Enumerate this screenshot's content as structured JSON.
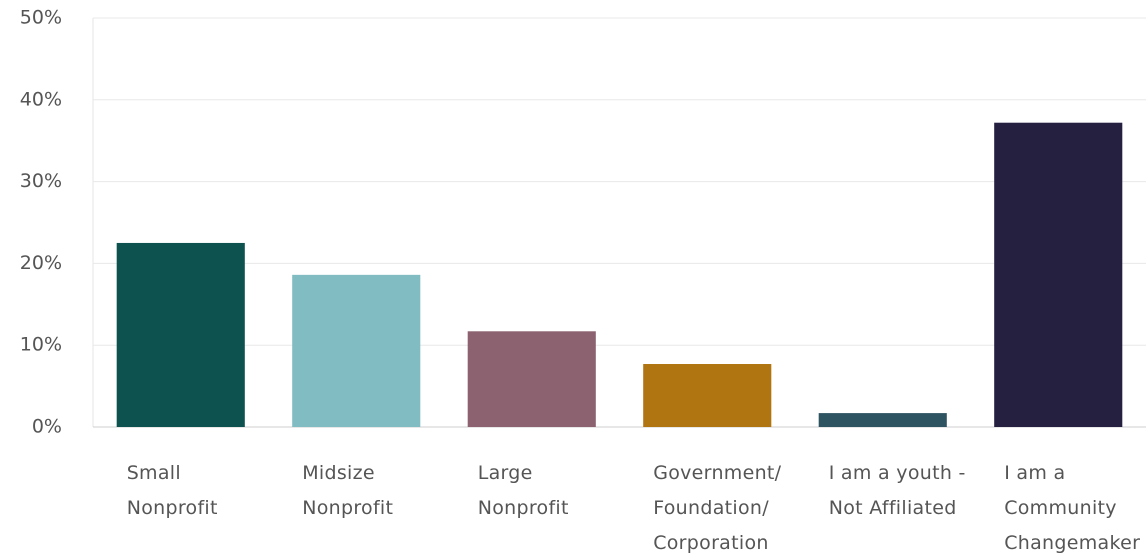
{
  "chart_data": {
    "type": "bar",
    "categories": [
      "Small Nonprofit",
      "Midsize Nonprofit",
      "Large Nonprofit",
      "Government/ Foundation/ Corporation",
      "I am a youth - Not Affiliated",
      "I am a Community Changemaker"
    ],
    "values": [
      22.5,
      18.6,
      11.7,
      7.7,
      1.7,
      37.2
    ],
    "colors": [
      "#0d524f",
      "#80bcc2",
      "#8c6170",
      "#b07410",
      "#2f5461",
      "#251f40"
    ],
    "ylim": [
      0,
      50
    ],
    "yticks": [
      {
        "value": 0,
        "label": "0%"
      },
      {
        "value": 10,
        "label": "10%"
      },
      {
        "value": 20,
        "label": "20%"
      },
      {
        "value": 30,
        "label": "30%"
      },
      {
        "value": 40,
        "label": "40%"
      },
      {
        "value": 50,
        "label": "50%"
      }
    ],
    "grid": true
  }
}
